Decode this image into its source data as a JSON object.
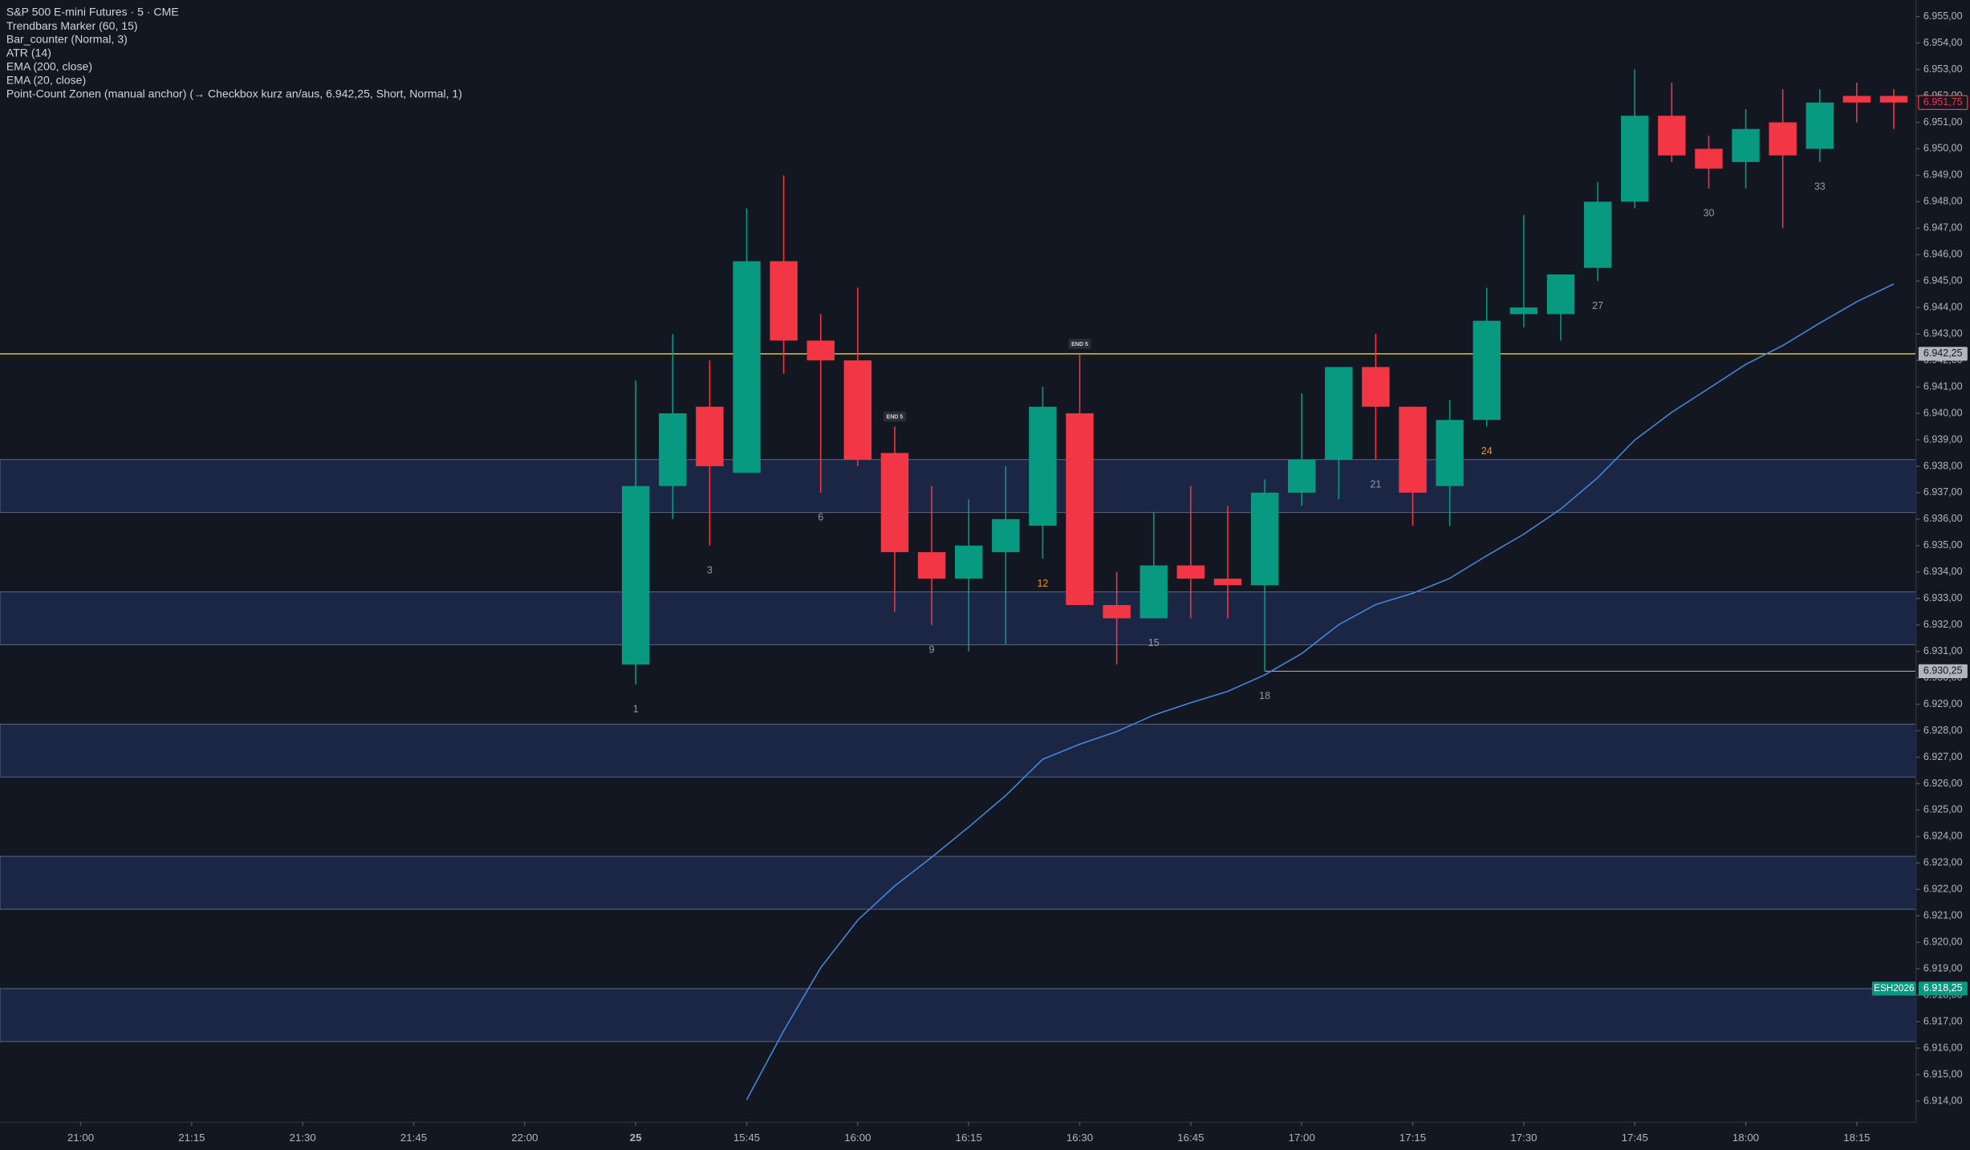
{
  "chart_data": {
    "type": "candlestick",
    "title": "S&P 500 E-mini Futures · 5 · CME",
    "legend": [
      "Trendbars Marker (60, 15)",
      "Bar_counter (Normal, 3)",
      "ATR (14)",
      "EMA (200, close)",
      "EMA (20, close)",
      "Point-Count Zonen (manual anchor) (→ Checkbox kurz an/aus, 6.942,25, Short, Normal, 1)"
    ],
    "categories": [
      null,
      null,
      null,
      null,
      null,
      null,
      null,
      null,
      null,
      null,
      null,
      null,
      null,
      null,
      null,
      null,
      null,
      null,
      null,
      null,
      null,
      null,
      null,
      null,
      null,
      null,
      null,
      null,
      null,
      null,
      null,
      null,
      null,
      null,
      null
    ],
    "open": [
      6930.5,
      6937.25,
      6940.25,
      6937.75,
      6945.75,
      6942.75,
      6942,
      6938.5,
      6934.75,
      6933.75,
      6934.75,
      6935.75,
      6940,
      6932.75,
      6932.25,
      6934.25,
      6933.75,
      6933.5,
      6937,
      6938.25,
      6941.75,
      6940.25,
      6937.25,
      6939.75,
      6943.75,
      6943.75,
      6945.5,
      6948,
      6951.25,
      6950,
      6949.5,
      6951,
      6950,
      6952,
      6952
    ],
    "high": [
      6941.25,
      6943,
      6942,
      6947.75,
      6949,
      6943.75,
      6944.75,
      6939.5,
      6937.25,
      6936.75,
      6938,
      6941,
      6942.25,
      6934,
      6936.25,
      6937.25,
      6936.5,
      6937.5,
      6940.75,
      6941.75,
      6943,
      6940.25,
      6940.5,
      6944.75,
      6947.5,
      6945.25,
      6948.75,
      6953,
      6952.5,
      6950.5,
      6951.5,
      6952.25,
      6952.25,
      6952.5,
      6952.25
    ],
    "low": [
      6929.75,
      6936,
      6935,
      6937.75,
      6941.5,
      6937,
      6938,
      6932.5,
      6932,
      6931,
      6931.25,
      6934.5,
      6932.75,
      6930.5,
      6932.25,
      6932.25,
      6932.25,
      6930.25,
      6936.5,
      6936.75,
      6938.25,
      6935.75,
      6935.75,
      6939.5,
      6943.25,
      6942.75,
      6945,
      6947.75,
      6949.5,
      6948.5,
      6948.5,
      6947,
      6949.5,
      6951,
      6950.75
    ],
    "close": [
      6937.25,
      6940,
      6938,
      6945.75,
      6942.75,
      6942,
      6938.25,
      6934.75,
      6933.75,
      6935,
      6936,
      6940.25,
      6932.75,
      6932.25,
      6934.25,
      6933.75,
      6933.5,
      6937,
      6938.25,
      6941.75,
      6940.25,
      6937,
      6939.75,
      6943.5,
      6944,
      6945.25,
      6948,
      6951.25,
      6949.75,
      6949.25,
      6950.75,
      6949.75,
      6951.75,
      6951.75,
      6951.75
    ],
    "up_color": "#089981",
    "down_color": "#f23645",
    "ema": {
      "color": "#4a86d8",
      "values": [
        null,
        null,
        null,
        6914.05,
        6916.66,
        6919.04,
        6920.84,
        6922.13,
        6923.22,
        6924.36,
        6925.55,
        6926.92,
        6927.49,
        6927.97,
        6928.59,
        6929.06,
        6929.49,
        6930.11,
        6930.92,
        6932.01,
        6932.77,
        6933.2,
        6933.76,
        6934.62,
        6935.43,
        6936.38,
        6937.57,
        6938.99,
        6940.04,
        6940.94,
        6941.85,
        6942.56,
        6943.41,
        6944.22,
        6944.89
      ]
    },
    "zones": [
      {
        "low": 6936.25,
        "high": 6938.25
      },
      {
        "low": 6931.25,
        "high": 6933.25
      },
      {
        "low": 6926.25,
        "high": 6928.25
      },
      {
        "low": 6921.25,
        "high": 6923.25
      },
      {
        "low": 6916.25,
        "high": 6918.25
      }
    ],
    "zone_color": "#1b2645",
    "anchor": {
      "value": 6942.25,
      "label": "6.942,25",
      "color": "#e6c12e"
    },
    "low_line": {
      "value": 6930.25,
      "label": "6.930,25"
    },
    "last_price": {
      "value": 6951.75,
      "label": "6.951,75"
    },
    "symbol_price": {
      "symbol": "ESH2026",
      "value": 6918.25,
      "label": "6.918,25"
    },
    "counter": [
      {
        "value": 1,
        "color": "#9598a1"
      },
      {
        "value": 3,
        "color": "#9598a1"
      },
      {
        "value": 6,
        "color": "#9598a1"
      },
      {
        "value": 9,
        "color": "#9598a1"
      },
      {
        "value": 12,
        "color": "#f7931a"
      },
      {
        "value": 15,
        "color": "#9598a1"
      },
      {
        "value": 18,
        "color": "#9598a1"
      },
      {
        "value": 21,
        "color": "#9598a1"
      },
      {
        "value": 24,
        "color": "#f7931a"
      },
      {
        "value": 27,
        "color": "#9598a1"
      },
      {
        "value": 30,
        "color": "#9598a1"
      },
      {
        "value": 33,
        "color": "#9598a1"
      }
    ],
    "end_tags": [
      {
        "bar": 8,
        "label": "END 5"
      },
      {
        "bar": 13,
        "label": "END 5"
      }
    ],
    "xlim": [
      -17.18,
      34.6
    ],
    "xticks": [
      {
        "value": -15,
        "label": "21:00"
      },
      {
        "value": -12,
        "label": "21:15"
      },
      {
        "value": -9,
        "label": "21:30"
      },
      {
        "value": -6,
        "label": "21:45"
      },
      {
        "value": -3,
        "label": "22:00"
      },
      {
        "value": 0,
        "label": "25"
      },
      {
        "value": 3,
        "label": "15:45"
      },
      {
        "value": 6,
        "label": "16:00"
      },
      {
        "value": 9,
        "label": "16:15"
      },
      {
        "value": 12,
        "label": "16:30"
      },
      {
        "value": 15,
        "label": "16:45"
      },
      {
        "value": 18,
        "label": "17:00"
      },
      {
        "value": 21,
        "label": "17:15"
      },
      {
        "value": 24,
        "label": "17:30"
      },
      {
        "value": 27,
        "label": "17:45"
      },
      {
        "value": 30,
        "label": "18:00"
      },
      {
        "value": 33,
        "label": "18:15"
      }
    ],
    "ylim": [
      6913.2,
      6955.62
    ],
    "yticks": [
      {
        "value": 6914,
        "label": "6.914,00"
      },
      {
        "value": 6915,
        "label": "6.915,00"
      },
      {
        "value": 6916,
        "label": "6.916,00"
      },
      {
        "value": 6917,
        "label": "6.917,00"
      },
      {
        "value": 6918,
        "label": "6.918,00"
      },
      {
        "value": 6919,
        "label": "6.919,00"
      },
      {
        "value": 6920,
        "label": "6.920,00"
      },
      {
        "value": 6921,
        "label": "6.921,00"
      },
      {
        "value": 6922,
        "label": "6.922,00"
      },
      {
        "value": 6923,
        "label": "6.923,00"
      },
      {
        "value": 6924,
        "label": "6.924,00"
      },
      {
        "value": 6925,
        "label": "6.925,00"
      },
      {
        "value": 6926,
        "label": "6.926,00"
      },
      {
        "value": 6927,
        "label": "6.927,00"
      },
      {
        "value": 6928,
        "label": "6.928,00"
      },
      {
        "value": 6929,
        "label": "6.929,00"
      },
      {
        "value": 6930,
        "label": "6.930,00"
      },
      {
        "value": 6931,
        "label": "6.931,00"
      },
      {
        "value": 6932,
        "label": "6.932,00"
      },
      {
        "value": 6933,
        "label": "6.933,00"
      },
      {
        "value": 6934,
        "label": "6.934,00"
      },
      {
        "value": 6935,
        "label": "6.935,00"
      },
      {
        "value": 6936,
        "label": "6.936,00"
      },
      {
        "value": 6937,
        "label": "6.937,00"
      },
      {
        "value": 6938,
        "label": "6.938,00"
      },
      {
        "value": 6939,
        "label": "6.939,00"
      },
      {
        "value": 6940,
        "label": "6.940,00"
      },
      {
        "value": 6941,
        "label": "6.941,00"
      },
      {
        "value": 6942,
        "label": "6.942,00"
      },
      {
        "value": 6943,
        "label": "6.943,00"
      },
      {
        "value": 6944,
        "label": "6.944,00"
      },
      {
        "value": 6945,
        "label": "6.945,00"
      },
      {
        "value": 6946,
        "label": "6.946,00"
      },
      {
        "value": 6947,
        "label": "6.947,00"
      },
      {
        "value": 6948,
        "label": "6.948,00"
      },
      {
        "value": 6949,
        "label": "6.949,00"
      },
      {
        "value": 6950,
        "label": "6.950,00"
      },
      {
        "value": 6951,
        "label": "6.951,00"
      },
      {
        "value": 6952,
        "label": "6.952,00"
      },
      {
        "value": 6953,
        "label": "6.953,00"
      },
      {
        "value": 6954,
        "label": "6.954,00"
      },
      {
        "value": 6955,
        "label": "6.955,00"
      }
    ],
    "grid": false
  }
}
